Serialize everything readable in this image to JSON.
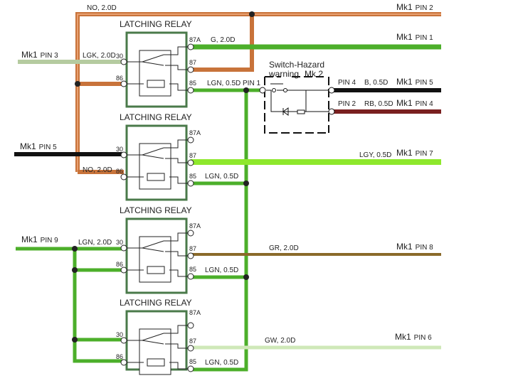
{
  "colors": {
    "orange_wire": "#c8733a",
    "green_wire": "#4caf2a",
    "light_green_wire": "#8ee82c",
    "sage_wire": "#b5cba0",
    "black_wire": "#111111",
    "maroon_wire": "#7a2020",
    "brown_wire": "#8a6a2a",
    "pale_green_wire": "#cfe8b8",
    "relay_box": "#4a7a4a"
  },
  "relay_title": "LATCHING RELAY",
  "relays": [
    {
      "title": "LATCHING RELAY",
      "pins": {
        "p30": "30",
        "p86": "86",
        "p87a": "87A",
        "p87": "87",
        "p85": "85"
      }
    },
    {
      "title": "LATCHING RELAY",
      "pins": {
        "p30": "30",
        "p86": "86",
        "p87a": "87A",
        "p87": "87",
        "p85": "85"
      }
    },
    {
      "title": "LATCHING RELAY",
      "pins": {
        "p30": "30",
        "p86": "86",
        "p87a": "87A",
        "p87": "87",
        "p85": "85"
      }
    },
    {
      "title": "LATCHING RELAY",
      "pins": {
        "p30": "30",
        "p86": "86",
        "p87a": "87A",
        "p87": "87",
        "p85": "85"
      }
    }
  ],
  "wire_labels": {
    "top_no": "NO, 2.0D",
    "lgk": "LGK, 2.0D",
    "g": "G, 2.0D",
    "lgn1": "LGN, 0.5D",
    "pin1": "PIN 1",
    "no2": "NO, 2.0D",
    "lgy": "LGY, 0.5D",
    "lgn2": "LGN, 0.5D",
    "lgn_in": "LGN, 2.0D",
    "gr": "GR, 2.0D",
    "lgn3": "LGN, 0.5D",
    "gw": "GW, 2.0D",
    "lgn4": "LGN, 0.5D",
    "b": "B, 0.5D",
    "rb": "RB, 0.5D",
    "sw_pin4": "PIN 4",
    "sw_pin2": "PIN 2"
  },
  "connectors": {
    "right": [
      {
        "mk": "Mk1",
        "pin": "PIN 2"
      },
      {
        "mk": "Mk1",
        "pin": "PIN 1"
      },
      {
        "mk": "Mk1",
        "pin": "PIN 5"
      },
      {
        "mk": "Mk1",
        "pin": "PIN 4"
      },
      {
        "mk": "Mk1",
        "pin": "PIN 7"
      },
      {
        "mk": "Mk1",
        "pin": "PIN 8"
      },
      {
        "mk": "Mk1",
        "pin": "PIN 6"
      }
    ],
    "left": [
      {
        "mk": "Mk1",
        "pin": "PIN 3"
      },
      {
        "mk": "Mk1",
        "pin": "PIN 5"
      },
      {
        "mk": "Mk1",
        "pin": "PIN 9"
      }
    ]
  },
  "switch": {
    "title": "Switch-Hazard",
    "subtitle": "warning",
    "mk": "Mk 2"
  }
}
